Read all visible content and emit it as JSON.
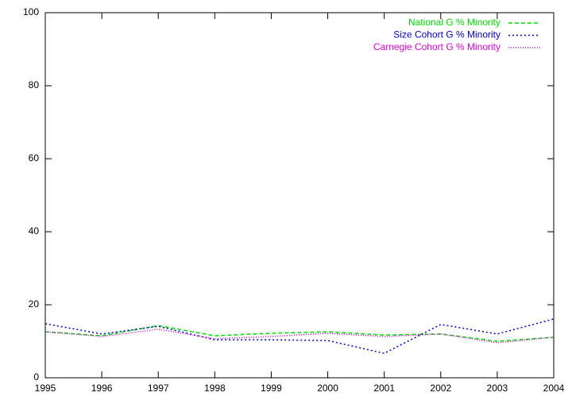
{
  "chart_data": {
    "type": "line",
    "x": [
      1995,
      1996,
      1997,
      1998,
      1999,
      2000,
      2001,
      2002,
      2003,
      2004
    ],
    "xlim": [
      1995,
      2004
    ],
    "xticks": [
      1995,
      1996,
      1997,
      1998,
      1999,
      2000,
      2001,
      2002,
      2003,
      2004
    ],
    "ylim": [
      0,
      100
    ],
    "yticks": [
      0,
      20,
      40,
      60,
      80,
      100
    ],
    "grid": false,
    "legend": "top-right",
    "series": [
      {
        "name": "National G % Minority",
        "color": "#00dd00",
        "dash": "dashed",
        "values": [
          12.6,
          11.5,
          14.3,
          11.5,
          12.2,
          12.6,
          11.7,
          12.0,
          10.0,
          11.1
        ]
      },
      {
        "name": "Size Cohort G % Minority",
        "color": "#0000cc",
        "dash": "dotted",
        "values": [
          14.8,
          12.0,
          14.1,
          10.4,
          10.4,
          10.2,
          6.7,
          14.6,
          12.0,
          16.1
        ]
      },
      {
        "name": "Carnegie Cohort G % Minority",
        "color": "#dd00dd",
        "dash": "fine-dotted",
        "values": [
          12.6,
          11.3,
          13.3,
          10.7,
          11.3,
          12.2,
          11.3,
          12.0,
          9.6,
          11.1
        ]
      }
    ]
  }
}
